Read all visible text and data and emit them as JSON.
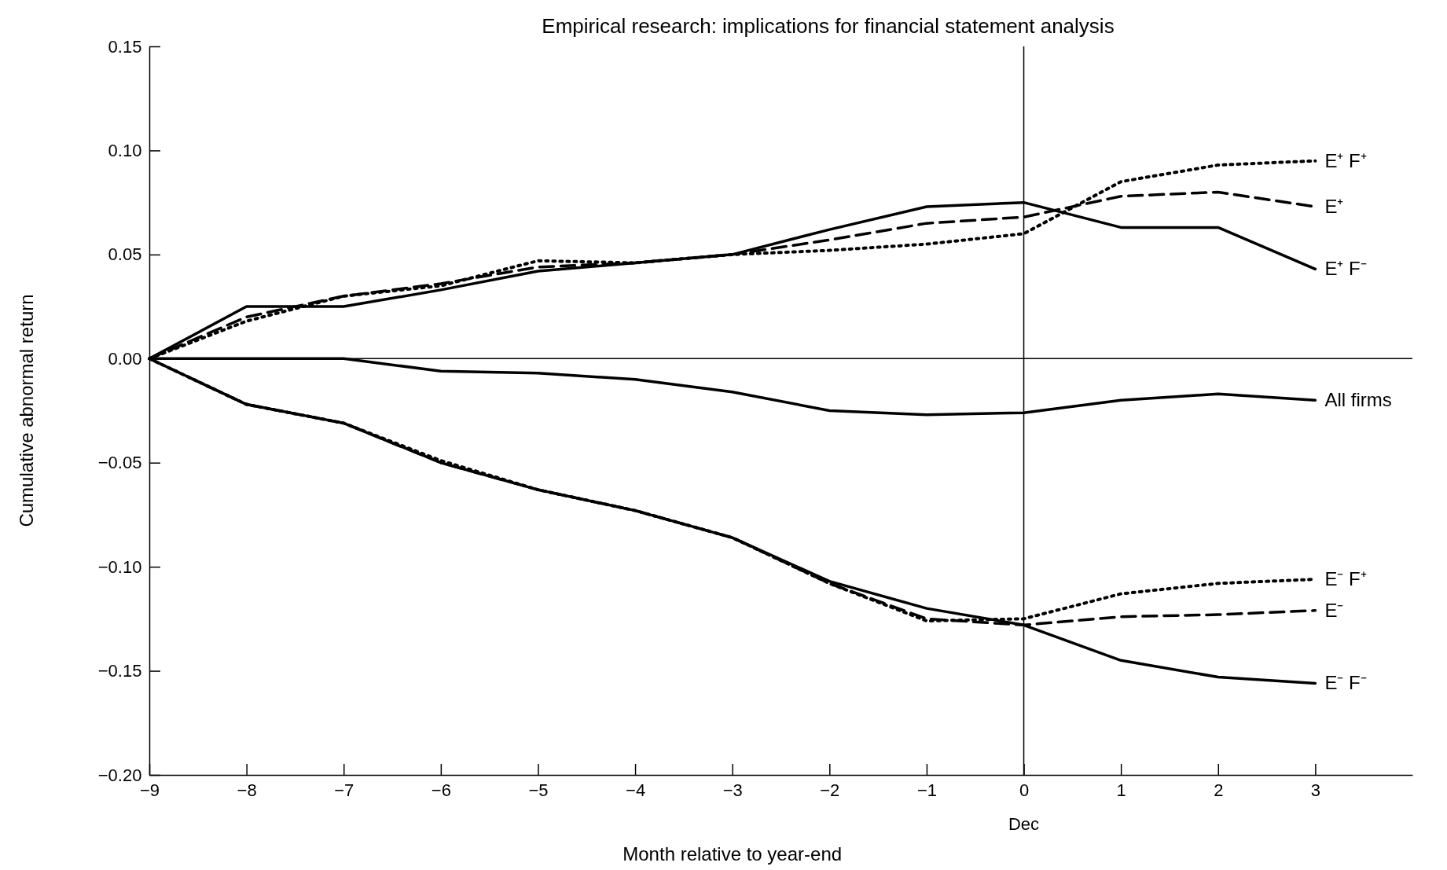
{
  "chart_data": {
    "type": "line",
    "title": "Empirical research: implications for financial statement analysis",
    "xlabel": "Month relative to year-end",
    "ylabel": "Cumulative abnormal return",
    "xlim": [
      -9,
      4
    ],
    "xticks": [
      {
        "value": -9,
        "label": "−9"
      },
      {
        "value": -8,
        "label": "−8"
      },
      {
        "value": -7,
        "label": "−7"
      },
      {
        "value": -6,
        "label": "−6"
      },
      {
        "value": -5,
        "label": "−5"
      },
      {
        "value": -4,
        "label": "−4"
      },
      {
        "value": -3,
        "label": "−3"
      },
      {
        "value": -2,
        "label": "−2"
      },
      {
        "value": -1,
        "label": "−1"
      },
      0,
      1,
      2,
      3
    ],
    "ylim": [
      -0.2,
      0.15
    ],
    "yticks": [
      {
        "value": -0.2,
        "label": "−0.20"
      },
      {
        "value": -0.15,
        "label": "−0.15"
      },
      {
        "value": -0.1,
        "label": "−0.10"
      },
      {
        "value": -0.05,
        "label": "−0.05"
      },
      {
        "value": 0,
        "label": "0.00"
      },
      {
        "value": 0.05,
        "label": "0.05"
      },
      {
        "value": 0.1,
        "label": "0.10"
      },
      {
        "value": 0.15,
        "label": "0.15"
      }
    ],
    "grid": false,
    "legend": false,
    "marker": "none",
    "ref_lines": [
      {
        "axis": "y",
        "value": 0,
        "color": "#000000"
      },
      {
        "axis": "x",
        "value": 0,
        "label": "Dec",
        "color": "#000000"
      }
    ],
    "x": [
      -9,
      -8,
      -7,
      -6,
      -5,
      -4,
      -3,
      -2,
      -1,
      0,
      1,
      2,
      3
    ],
    "series": [
      {
        "name": "E⁺ F⁺",
        "color": "#000000",
        "line_style": "dotted",
        "values": [
          0,
          0.018,
          0.03,
          0.035,
          0.047,
          0.046,
          0.05,
          0.052,
          0.055,
          0.06,
          0.085,
          0.093,
          0.095
        ]
      },
      {
        "name": "E⁺",
        "color": "#000000",
        "line_style": "dashed",
        "values": [
          0,
          0.02,
          0.03,
          0.036,
          0.044,
          0.046,
          0.05,
          0.057,
          0.065,
          0.068,
          0.078,
          0.08,
          0.073
        ]
      },
      {
        "name": "E⁺ F⁻",
        "color": "#000000",
        "line_style": "solid",
        "values": [
          0,
          0.025,
          0.025,
          0.033,
          0.042,
          0.046,
          0.05,
          0.062,
          0.073,
          0.075,
          0.063,
          0.063,
          0.043
        ]
      },
      {
        "name": "All firms",
        "color": "#000000",
        "line_style": "solid",
        "values": [
          0,
          0,
          0,
          -0.006,
          -0.007,
          -0.01,
          -0.016,
          -0.025,
          -0.027,
          -0.026,
          -0.02,
          -0.017,
          -0.02
        ]
      },
      {
        "name": "E⁻ F⁺",
        "color": "#000000",
        "line_style": "dotted",
        "values": [
          0,
          -0.022,
          -0.031,
          -0.049,
          -0.063,
          -0.073,
          -0.086,
          -0.108,
          -0.126,
          -0.125,
          -0.113,
          -0.108,
          -0.106
        ]
      },
      {
        "name": "E⁻",
        "color": "#000000",
        "line_style": "dashed",
        "values": [
          0,
          -0.022,
          -0.031,
          -0.05,
          -0.063,
          -0.073,
          -0.086,
          -0.108,
          -0.125,
          -0.128,
          -0.124,
          -0.123,
          -0.121
        ]
      },
      {
        "name": "E⁻ F⁻",
        "color": "#000000",
        "line_style": "solid",
        "values": [
          0,
          -0.022,
          -0.031,
          -0.05,
          -0.063,
          -0.073,
          -0.086,
          -0.107,
          -0.12,
          -0.128,
          -0.145,
          -0.153,
          -0.156
        ]
      }
    ]
  }
}
